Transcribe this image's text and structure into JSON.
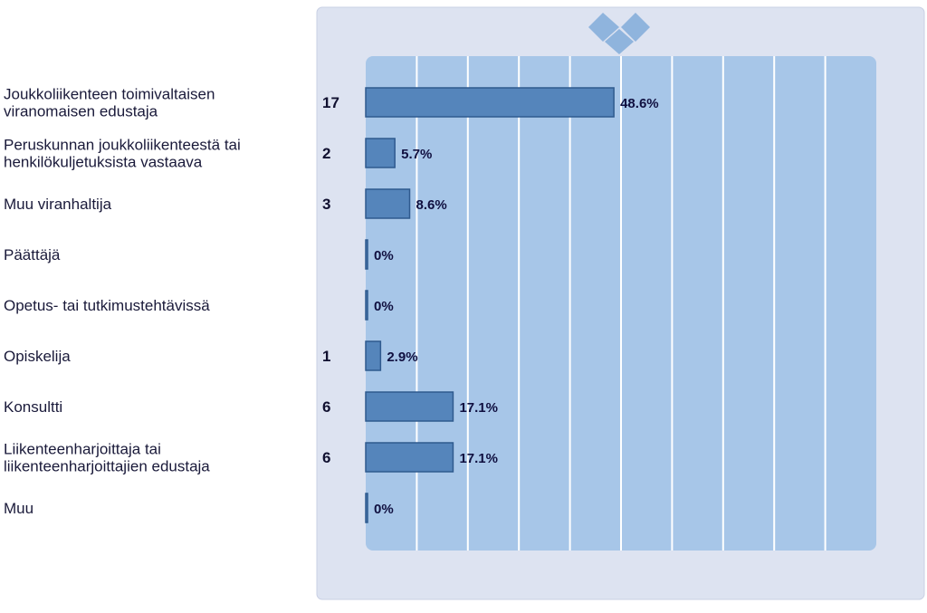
{
  "chart_data": {
    "type": "bar",
    "orientation": "horizontal",
    "categories": [
      [
        "Joukkoliikenteen toimivaltaisen",
        "viranomaisen edustaja"
      ],
      [
        "Peruskunnan joukkoliikenteestä tai",
        "henkilökuljetuksista vastaava"
      ],
      [
        "Muu viranhaltija"
      ],
      [
        "Päättäjä"
      ],
      [
        "Opetus- tai tutkimustehtävissä"
      ],
      [
        "Opiskelija"
      ],
      [
        "Konsultti"
      ],
      [
        "Liikenteenharjoittaja tai",
        "liikenteenharjoittajien edustaja"
      ],
      [
        "Muu"
      ]
    ],
    "counts": [
      "17",
      "2",
      "3",
      "",
      "",
      "1",
      "6",
      "6",
      ""
    ],
    "values": [
      48.6,
      5.7,
      8.6,
      0,
      0,
      2.9,
      17.1,
      17.1,
      0
    ],
    "percent_labels": [
      "48.6%",
      "5.7%",
      "8.6%",
      "0%",
      "0%",
      "2.9%",
      "17.1%",
      "17.1%",
      "0%"
    ],
    "xlim": [
      0,
      100
    ],
    "grid_columns": 10,
    "grid": true,
    "legend": "none"
  },
  "colors": {
    "panel_bg": "#dde3f1",
    "panel_border": "#c9d0e4",
    "plot_bg": "#a7c6e8",
    "grid_line": "#ffffff",
    "bar_fill": "#5585bb",
    "bar_stroke": "#2f5a8e",
    "logo": "#8fb4dd"
  },
  "icons": {
    "logo": "diamond-logo-icon"
  }
}
